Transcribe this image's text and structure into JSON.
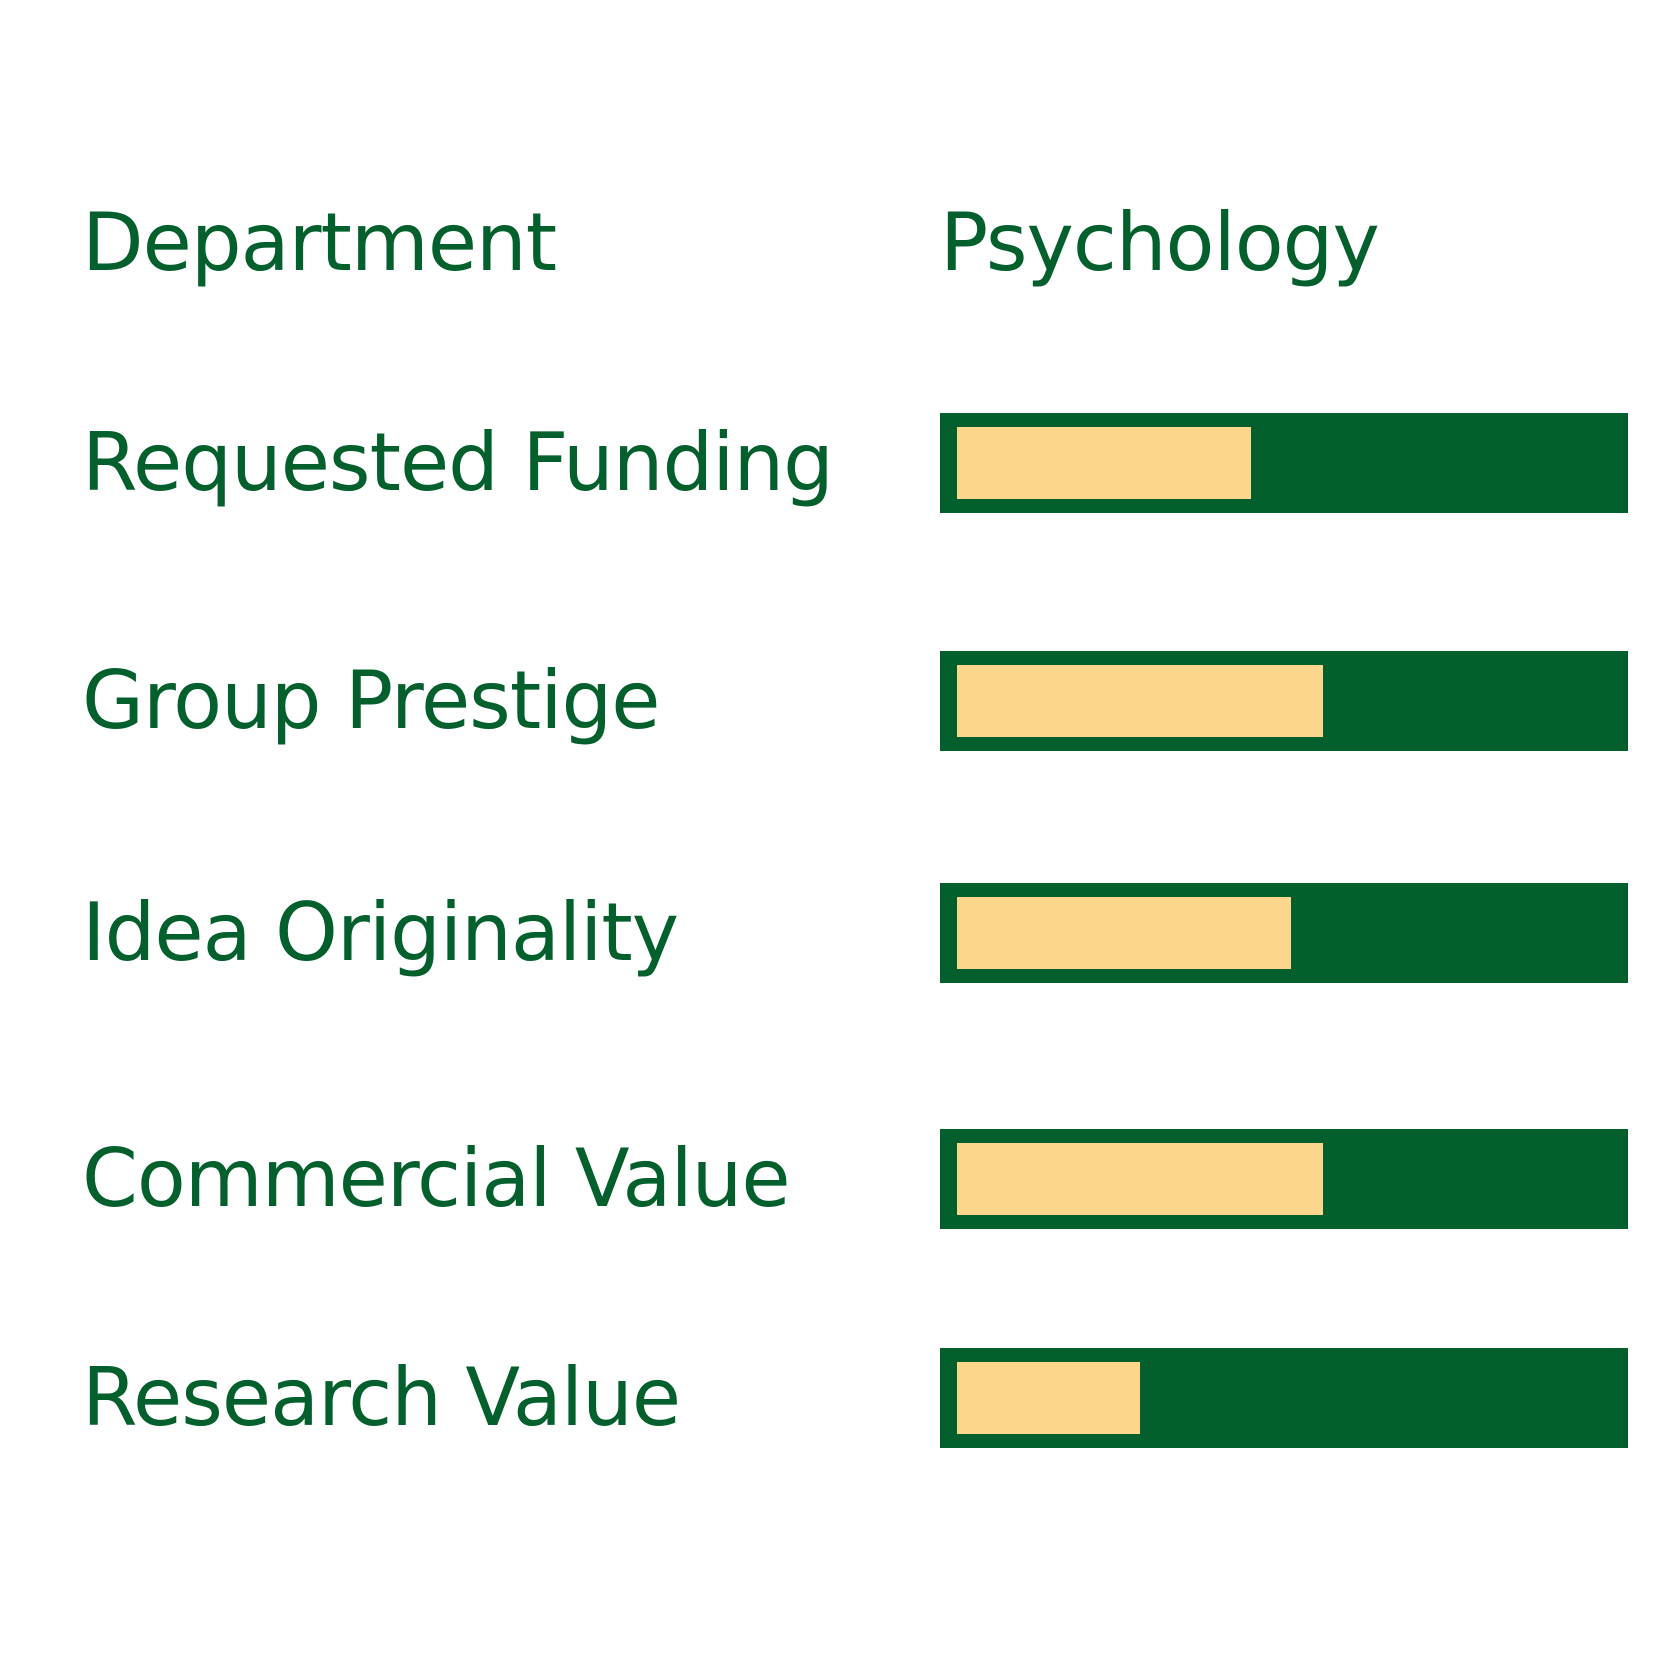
{
  "header": {
    "category_label": "Department",
    "department_value": "Psychology"
  },
  "colors": {
    "text": "#03602d",
    "bar_track": "#03602d",
    "bar_fill": "#fbd68b",
    "background": "#ffffff"
  },
  "chart_data": {
    "type": "bar",
    "orientation": "horizontal",
    "value_scale": "fraction of full bar (0-1), read from fill length",
    "categories": [
      "Requested Funding",
      "Group Prestige",
      "Idea Originality",
      "Commercial Value",
      "Research Value"
    ],
    "values": [
      0.45,
      0.56,
      0.51,
      0.56,
      0.28
    ],
    "xlim": [
      0,
      1
    ]
  }
}
